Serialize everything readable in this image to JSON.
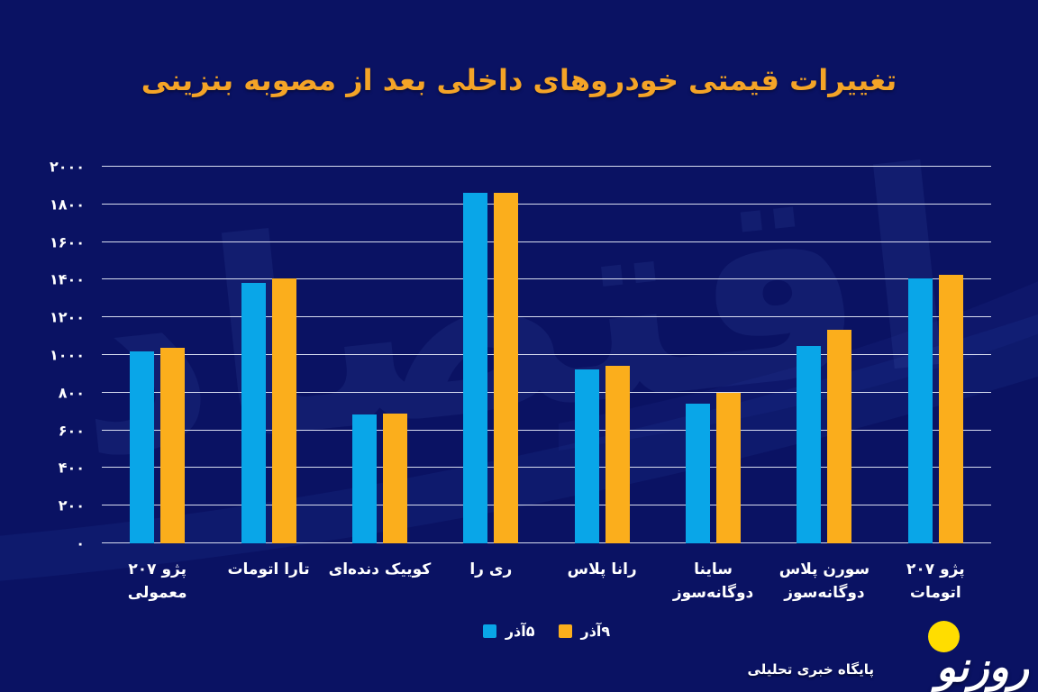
{
  "colors": {
    "background": "#0A1263",
    "bar_blue": "#09A6E8",
    "bar_orange": "#FBAE1C",
    "title_text": "#F4A427",
    "grid_line": "#E9EEFB",
    "axis_text": "#FFFFFF",
    "logo_yellow": "#FFDD00",
    "watermark_blue": "#5B7FD6"
  },
  "chart_data": {
    "type": "bar",
    "title": "تغییرات قیمتی خودروهای داخلی بعد از مصوبه بنزینی",
    "xlabel": "",
    "ylabel": "",
    "direction": "rtl",
    "grid": true,
    "legend_position": "bottom-center",
    "ylim": [
      0,
      2000
    ],
    "yticks": [
      {
        "value": 2000,
        "label": "۲۰۰۰"
      },
      {
        "value": 1800,
        "label": "۱۸۰۰"
      },
      {
        "value": 1600,
        "label": "۱۶۰۰"
      },
      {
        "value": 1400,
        "label": "۱۴۰۰"
      },
      {
        "value": 1200,
        "label": "۱۲۰۰"
      },
      {
        "value": 1000,
        "label": "۱۰۰۰"
      },
      {
        "value": 800,
        "label": "۸۰۰"
      },
      {
        "value": 600,
        "label": "۶۰۰"
      },
      {
        "value": 400,
        "label": "۴۰۰"
      },
      {
        "value": 200,
        "label": "۲۰۰"
      },
      {
        "value": 0,
        "label": "۰"
      }
    ],
    "categories": [
      "پژو ۲۰۷ اتومات",
      "سورن پلاس\nدوگانه‌سوز",
      "ساینا دوگانه‌سوز",
      "رانا پلاس",
      "ری را",
      "کوییک دنده‌ای",
      "تارا اتومات",
      "پژو ۲۰۷ معمولی"
    ],
    "series": [
      {
        "name": "۵آذر",
        "color_key": "bar_blue",
        "values": [
          1405,
          1050,
          740,
          925,
          1860,
          685,
          1385,
          1020
        ]
      },
      {
        "name": "۹آذر",
        "color_key": "bar_orange",
        "values": [
          1425,
          1135,
          800,
          945,
          1860,
          690,
          1405,
          1040
        ]
      }
    ]
  },
  "watermark_text": "اقتصاد",
  "logo": {
    "name": "روزنو",
    "tagline": "پایگاه خبری تحلیلی"
  }
}
